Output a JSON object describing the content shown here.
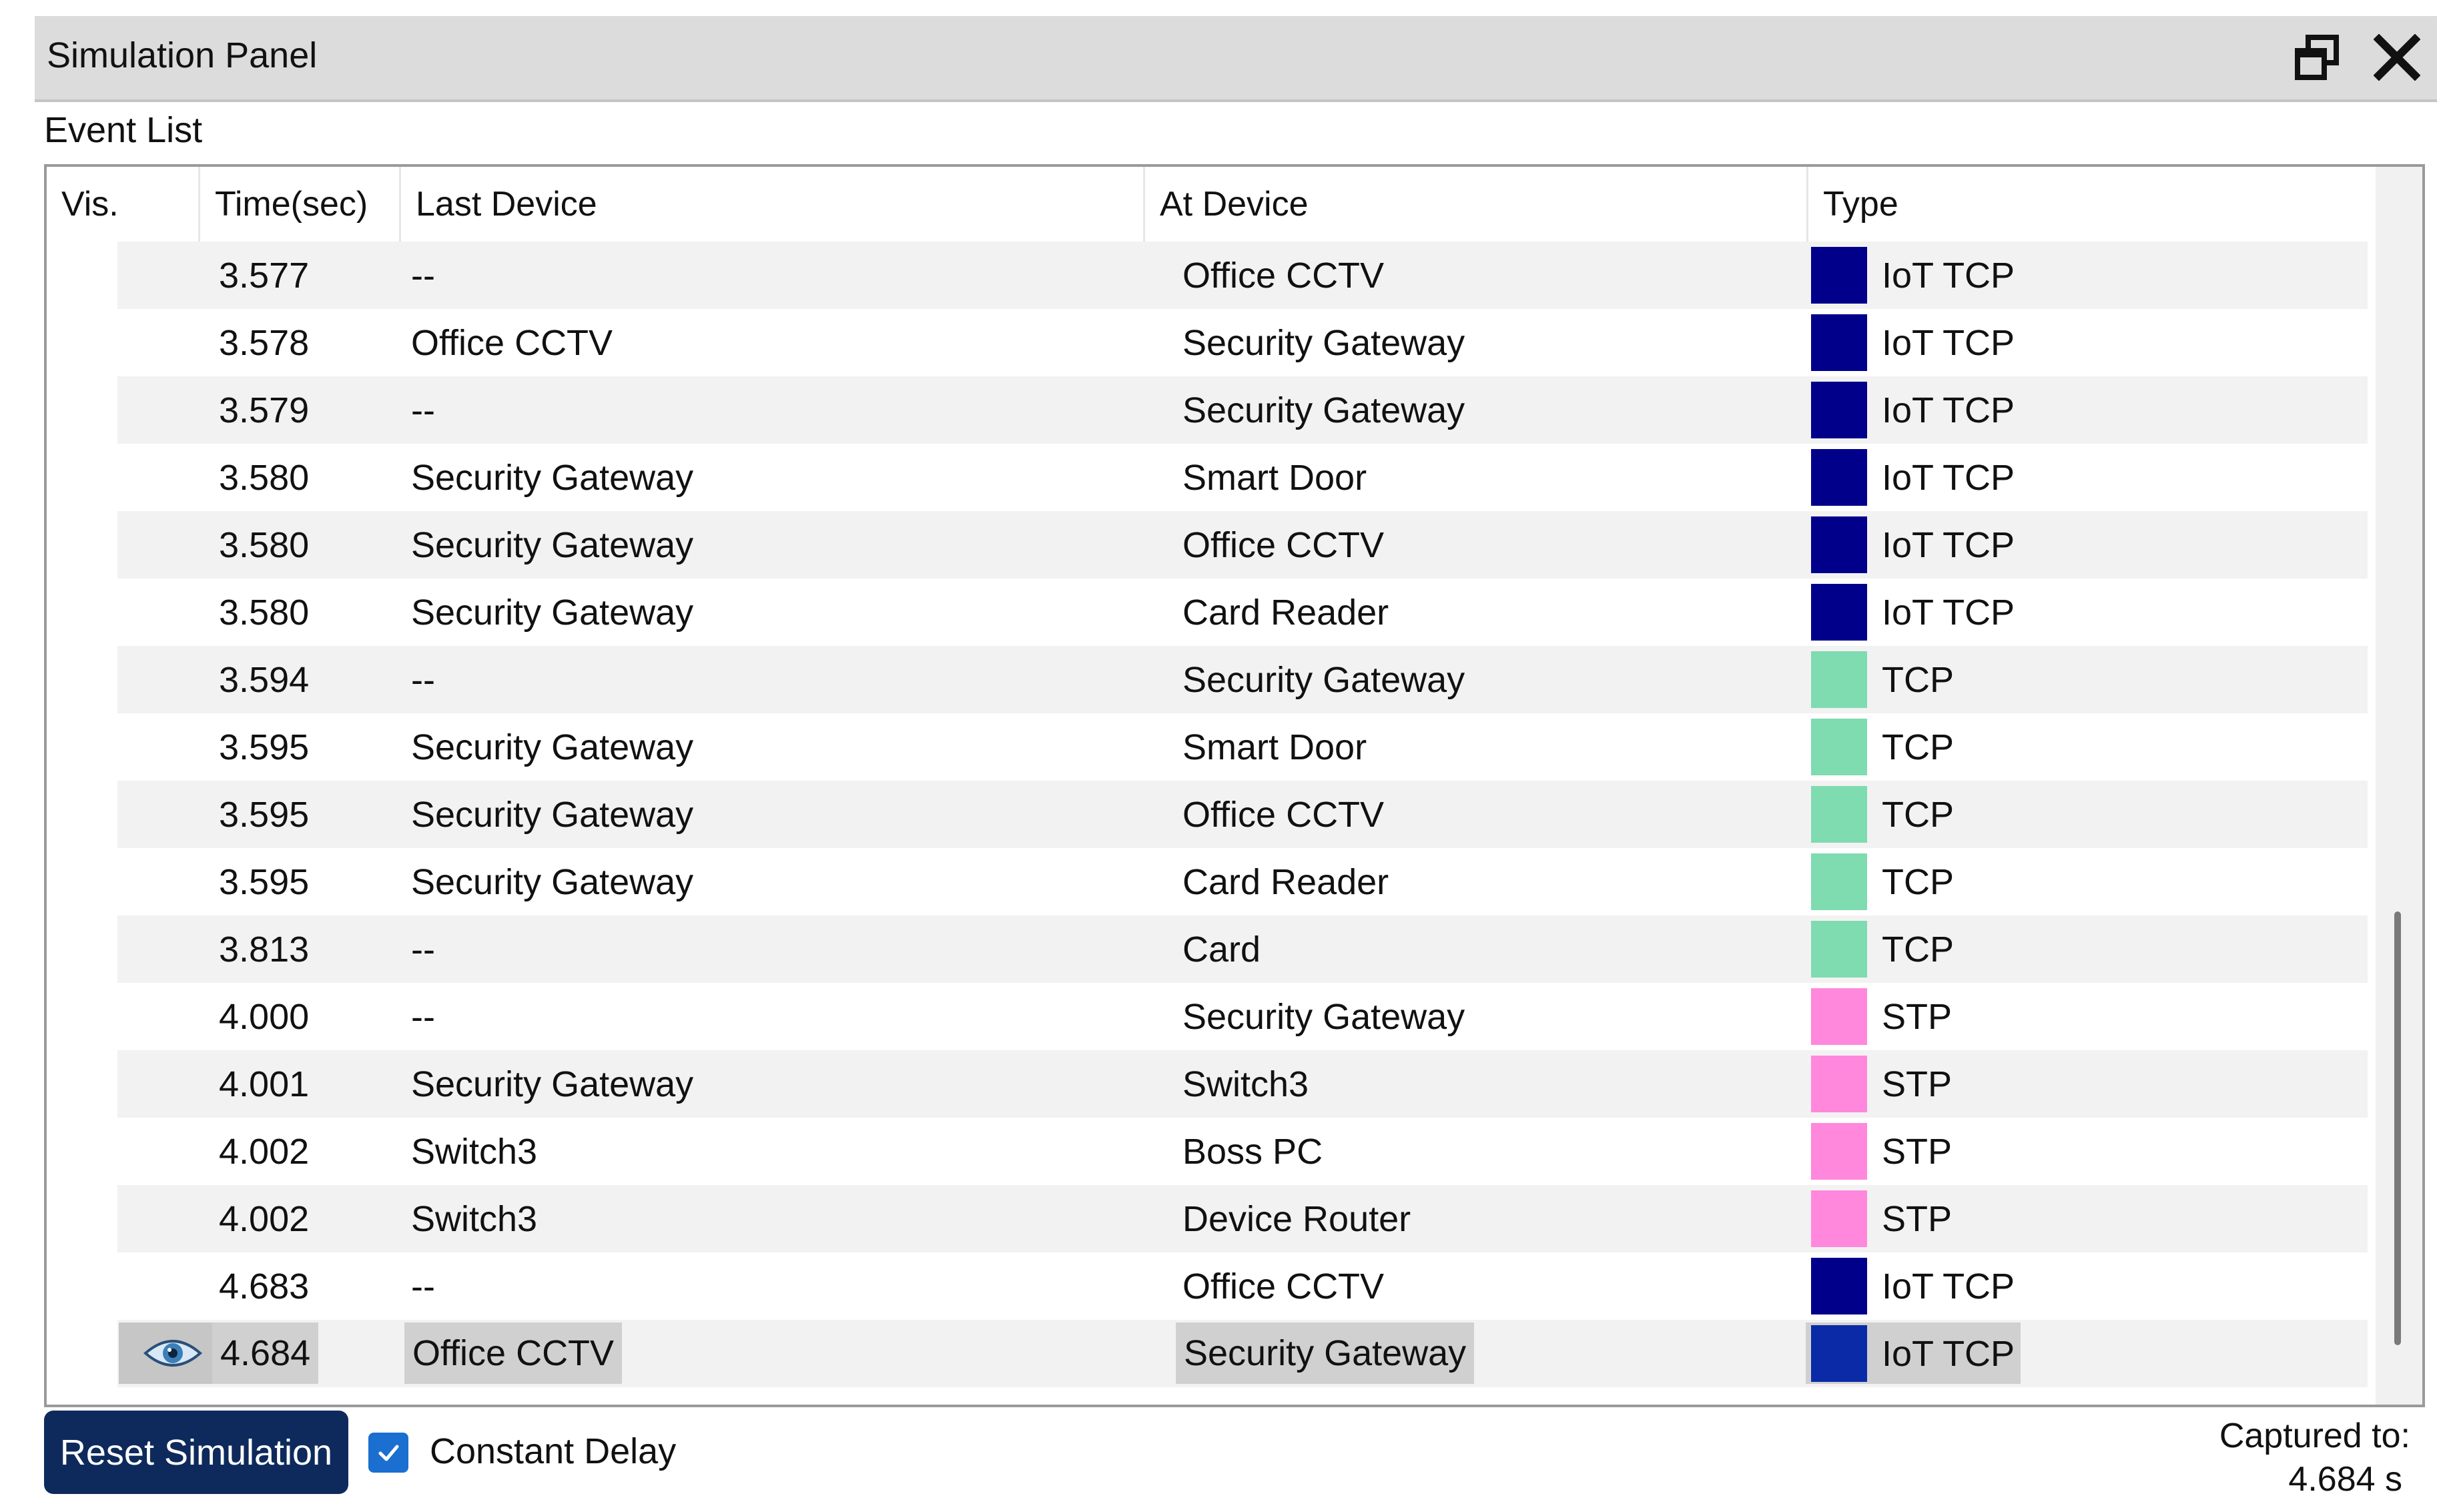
{
  "window": {
    "title": "Simulation Panel",
    "restore_icon": "restore-window-icon",
    "close_icon": "close-icon"
  },
  "event_list": {
    "label": "Event List",
    "columns": [
      "Vis.",
      "Time(sec)",
      "Last Device",
      "At Device",
      "Type"
    ],
    "rows": [
      {
        "time": "3.577",
        "last": "--",
        "at": "Office CCTV",
        "type": "IoT TCP",
        "color": "#00008b"
      },
      {
        "time": "3.578",
        "last": "Office CCTV",
        "at": "Security Gateway",
        "type": "IoT TCP",
        "color": "#00008b"
      },
      {
        "time": "3.579",
        "last": "--",
        "at": "Security Gateway",
        "type": "IoT TCP",
        "color": "#00008b"
      },
      {
        "time": "3.580",
        "last": "Security Gateway",
        "at": "Smart Door",
        "type": "IoT TCP",
        "color": "#00008b"
      },
      {
        "time": "3.580",
        "last": "Security Gateway",
        "at": "Office CCTV",
        "type": "IoT TCP",
        "color": "#00008b"
      },
      {
        "time": "3.580",
        "last": "Security Gateway",
        "at": "Card Reader",
        "type": "IoT TCP",
        "color": "#00008b"
      },
      {
        "time": "3.594",
        "last": "--",
        "at": "Security Gateway",
        "type": "TCP",
        "color": "#7fdbb0"
      },
      {
        "time": "3.595",
        "last": "Security Gateway",
        "at": "Smart Door",
        "type": "TCP",
        "color": "#7fdbb0"
      },
      {
        "time": "3.595",
        "last": "Security Gateway",
        "at": "Office CCTV",
        "type": "TCP",
        "color": "#7fdbb0"
      },
      {
        "time": "3.595",
        "last": "Security Gateway",
        "at": "Card Reader",
        "type": "TCP",
        "color": "#7fdbb0"
      },
      {
        "time": "3.813",
        "last": "--",
        "at": "Card",
        "type": "TCP",
        "color": "#7fdbb0"
      },
      {
        "time": "4.000",
        "last": "--",
        "at": "Security Gateway",
        "type": "STP",
        "color": "#ff88dd"
      },
      {
        "time": "4.001",
        "last": "Security Gateway",
        "at": "Switch3",
        "type": "STP",
        "color": "#ff88dd"
      },
      {
        "time": "4.002",
        "last": "Switch3",
        "at": "Boss PC",
        "type": "STP",
        "color": "#ff88dd"
      },
      {
        "time": "4.002",
        "last": "Switch3",
        "at": "Device Router",
        "type": "STP",
        "color": "#ff88dd"
      },
      {
        "time": "4.683",
        "last": "--",
        "at": "Office CCTV",
        "type": "IoT TCP",
        "color": "#00008b"
      },
      {
        "time": "4.684",
        "last": "Office CCTV",
        "at": "Security Gateway",
        "type": "IoT TCP",
        "color": "#0a2aa8",
        "visible_icon": "eye-icon",
        "highlighted": true
      }
    ]
  },
  "footer": {
    "reset_label": "Reset Simulation",
    "constant_delay_label": "Constant Delay",
    "constant_delay_checked": true,
    "captured_label": "Captured to:",
    "captured_value": "4.684 s"
  }
}
